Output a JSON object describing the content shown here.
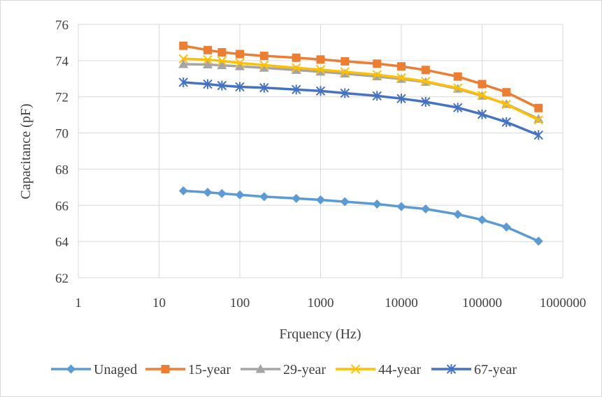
{
  "chart_data": {
    "type": "line",
    "xscale": "log",
    "xlabel": "Frquency (Hz)",
    "ylabel": "Capacitance (pF)",
    "xlim": [
      1,
      1000000
    ],
    "ylim": [
      62,
      76
    ],
    "x_ticks": [
      "1",
      "10",
      "100",
      "1000",
      "10000",
      "100000",
      "1000000"
    ],
    "y_ticks": [
      "62",
      "64",
      "66",
      "68",
      "70",
      "72",
      "74",
      "76"
    ],
    "grid": true,
    "legend_position": "bottom",
    "x": [
      20,
      40,
      60,
      100,
      200,
      500,
      1000,
      2000,
      5000,
      10000,
      20000,
      50000,
      100000,
      200000,
      500000
    ],
    "series": [
      {
        "name": "Unaged",
        "marker": "diamond",
        "color": "#5B9BD5",
        "values": [
          66.8,
          66.72,
          66.65,
          66.58,
          66.48,
          66.38,
          66.3,
          66.2,
          66.07,
          65.93,
          65.8,
          65.5,
          65.2,
          64.8,
          64.02
        ]
      },
      {
        "name": "15-year",
        "marker": "square",
        "color": "#ED7D31",
        "values": [
          74.82,
          74.58,
          74.46,
          74.36,
          74.26,
          74.16,
          74.06,
          73.96,
          73.83,
          73.68,
          73.48,
          73.12,
          72.7,
          72.25,
          71.38
        ]
      },
      {
        "name": "29-year",
        "marker": "triangle",
        "color": "#A5A5A5",
        "values": [
          73.8,
          73.78,
          73.74,
          73.68,
          73.6,
          73.48,
          73.38,
          73.28,
          73.12,
          72.98,
          72.82,
          72.44,
          72.05,
          71.6,
          70.78
        ]
      },
      {
        "name": "44-year",
        "marker": "x",
        "color": "#FFC000",
        "values": [
          74.1,
          74.05,
          73.98,
          73.87,
          73.75,
          73.6,
          73.5,
          73.38,
          73.22,
          73.05,
          72.85,
          72.48,
          72.08,
          71.58,
          70.72
        ]
      },
      {
        "name": "67-year",
        "marker": "star",
        "color": "#4472C4",
        "values": [
          72.8,
          72.7,
          72.62,
          72.55,
          72.5,
          72.4,
          72.32,
          72.2,
          72.05,
          71.9,
          71.72,
          71.4,
          71.03,
          70.6,
          69.88
        ]
      }
    ]
  }
}
